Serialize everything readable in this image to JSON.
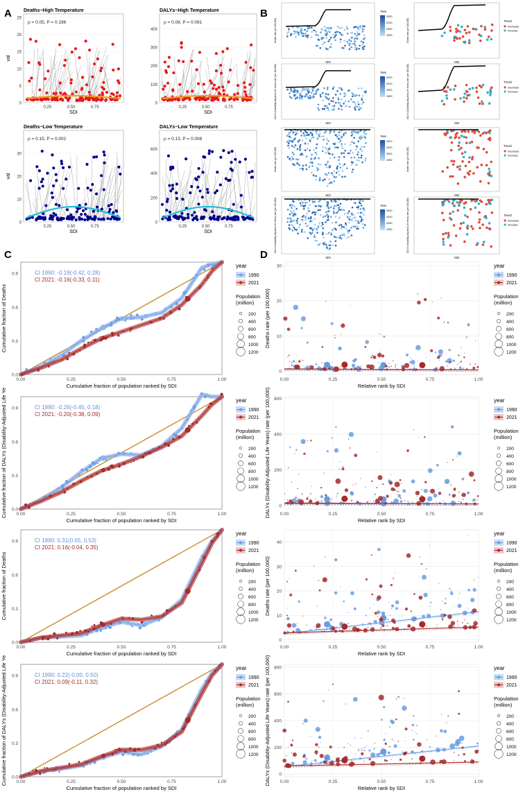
{
  "panel_letters": [
    "A",
    "B",
    "C",
    "D"
  ],
  "colors": {
    "red": "#e41a1c",
    "dark_red": "#a52a2a",
    "navy": "#00008b",
    "cyan": "#1fbfd6",
    "grey": "#8c8c8c",
    "light_blue": "#8fb4ee",
    "mid_blue": "#6a9de0",
    "orange_line": "#c98a2a",
    "trend_decrease": "#e04a3a",
    "trend_increase": "#2bb3c6"
  },
  "panelA": [
    {
      "title": "Deaths~High Temperature",
      "stat": "ρ = 0.05, P = 0.196",
      "ylabel": "val",
      "xlabel": "SDI",
      "yticks": [
        0,
        5,
        10,
        15,
        20,
        25
      ],
      "xticks": [
        "0.25",
        "0.50",
        "0.75"
      ],
      "ymax": 26,
      "theme": "red"
    },
    {
      "title": "DALYs~High Temperature",
      "stat": "ρ = 0.08, P = 0.091",
      "ylabel": "",
      "xlabel": "SDI",
      "yticks": [
        0,
        100,
        200,
        300,
        400
      ],
      "xticks": [
        "0.25",
        "0.50",
        "0.75"
      ],
      "ymax": 480,
      "theme": "red"
    },
    {
      "title": "Deaths~Low Temperature",
      "stat": "ρ = 0.15, P = 0.002",
      "ylabel": "val",
      "xlabel": "SDI",
      "yticks": [
        0,
        10,
        20,
        30
      ],
      "xticks": [
        "0.25",
        "0.50",
        "0.75"
      ],
      "ymax": 40,
      "theme": "blue"
    },
    {
      "title": "DALYs~Low Temperature",
      "stat": "ρ = 0.13, P = 0.008",
      "ylabel": "",
      "xlabel": "SDI",
      "yticks": [
        0,
        200,
        400,
        600
      ],
      "xticks": [
        "0.25",
        "0.50",
        "0.75"
      ],
      "ymax": 750,
      "theme": "blue"
    }
  ],
  "panelB": {
    "year_title": "Year",
    "year_ticks": [
      "2020",
      "2010",
      "2000",
      "1990"
    ],
    "trend_title": "Trend",
    "trend_items": [
      "Decrease",
      "Increase"
    ],
    "xlabel": "SDI",
    "ylabels": [
      "Deaths rate (per 100,000)",
      "DALYs (Disability-Adjusted Life Years) rate (per 100,000)",
      "Deaths rate (per 100,000)",
      "DALYs (Disability-Adjusted Life Years) rate (per 100,000)"
    ]
  },
  "chart_data": [
    {
      "panel": "C1",
      "type": "line",
      "title": "",
      "xlabel": "Cumulative fraction of population ranked by SDI",
      "ylabel": "Cumulative fraction of Deaths",
      "xlim": [
        0,
        1
      ],
      "ylim": [
        0,
        1
      ],
      "xticks": [
        0.0,
        0.25,
        0.5,
        0.75,
        1.0
      ],
      "yticks": [
        0.0,
        0.3,
        0.6,
        0.9
      ],
      "annotations": [
        "CI 1990: -0.19(-0.42, 0.28)",
        "CI 2021: -0.16(-0.33, 0.11)"
      ],
      "series": [
        {
          "name": "1990",
          "x": [
            0,
            0.1,
            0.2,
            0.3,
            0.4,
            0.5,
            0.6,
            0.7,
            0.8,
            0.9,
            0.95,
            1.0
          ],
          "y": [
            0,
            0.07,
            0.17,
            0.3,
            0.41,
            0.5,
            0.51,
            0.55,
            0.68,
            0.95,
            0.98,
            1.0
          ]
        },
        {
          "name": "2021",
          "x": [
            0,
            0.1,
            0.2,
            0.3,
            0.4,
            0.5,
            0.6,
            0.7,
            0.8,
            0.9,
            0.95,
            1.0
          ],
          "y": [
            0,
            0.06,
            0.13,
            0.23,
            0.32,
            0.38,
            0.44,
            0.5,
            0.62,
            0.8,
            0.92,
            1.0
          ]
        }
      ],
      "legend": {
        "title": "year",
        "entries": [
          "1990",
          "2021"
        ],
        "size_title": "Population\n(million)",
        "sizes": [
          200,
          400,
          600,
          800,
          1000,
          1200
        ]
      }
    },
    {
      "panel": "D1",
      "type": "scatter",
      "xlabel": "Relative rank by SDI",
      "ylabel": "Deaths rate (per 100,000)",
      "xlim": [
        0,
        1
      ],
      "ylim": [
        -1,
        31
      ],
      "xticks": [
        0.0,
        0.25,
        0.5,
        0.75,
        1.0
      ],
      "yticks": [
        0,
        10,
        20,
        30
      ],
      "series": [
        {
          "name": "1990",
          "fit": [
            0.5,
            0.3
          ]
        },
        {
          "name": "2021",
          "fit": [
            0.6,
            0.3
          ]
        }
      ],
      "legend": {
        "title": "year",
        "entries": [
          "1990",
          "2021"
        ],
        "size_title": "Population\n(million)",
        "sizes": [
          200,
          400,
          600,
          800,
          1000,
          1200
        ]
      }
    },
    {
      "panel": "C2",
      "type": "line",
      "xlabel": "Cumulative fraction of population ranked by SDI",
      "ylabel": "Cumulative fraction of DALYs (Disability-Adjusted Life Ye",
      "xlim": [
        0,
        1
      ],
      "ylim": [
        0,
        1
      ],
      "xticks": [
        0.0,
        0.25,
        0.5,
        0.75,
        1.0
      ],
      "yticks": [
        0.0,
        0.3,
        0.6,
        0.9
      ],
      "annotations": [
        "CI 1990: -0.26(-0.45, 0.18)",
        "CI 2021: -0.20(-0.38, 0.09)"
      ],
      "series": [
        {
          "name": "1990",
          "x": [
            0,
            0.1,
            0.2,
            0.3,
            0.4,
            0.5,
            0.6,
            0.7,
            0.8,
            0.9,
            0.95,
            1.0
          ],
          "y": [
            0,
            0.08,
            0.19,
            0.33,
            0.45,
            0.49,
            0.48,
            0.56,
            0.72,
            1.02,
            1.0,
            1.0
          ]
        },
        {
          "name": "2021",
          "x": [
            0,
            0.1,
            0.2,
            0.3,
            0.4,
            0.5,
            0.6,
            0.7,
            0.8,
            0.9,
            0.95,
            1.0
          ],
          "y": [
            0,
            0.07,
            0.15,
            0.25,
            0.34,
            0.4,
            0.47,
            0.55,
            0.65,
            0.83,
            0.93,
            1.0
          ]
        }
      ],
      "legend": {
        "title": "year",
        "entries": [
          "1990",
          "2021"
        ],
        "size_title": "Population\n(million)",
        "sizes": [
          200,
          400,
          600,
          800,
          1000,
          1200
        ]
      }
    },
    {
      "panel": "D2",
      "type": "scatter",
      "xlabel": "Relative rank by SDI",
      "ylabel": "DALYs (Disability-Adjusted Life Years) rate (per 100,000)",
      "xlim": [
        0,
        1
      ],
      "ylim": [
        -20,
        610
      ],
      "xticks": [
        0.0,
        0.25,
        0.5,
        0.75,
        1.0
      ],
      "yticks": [
        0,
        200,
        400,
        600
      ],
      "series": [
        {
          "name": "1990",
          "fit": [
            10,
            8
          ]
        },
        {
          "name": "2021",
          "fit": [
            14,
            9
          ]
        }
      ],
      "legend": {
        "title": "year",
        "entries": [
          "1990",
          "2021"
        ],
        "size_title": "Population\n(million)",
        "sizes": [
          200,
          400,
          600,
          800,
          1000,
          1200
        ]
      }
    },
    {
      "panel": "C3",
      "type": "line",
      "xlabel": "Cumulative fraction of population ranked by SDI",
      "ylabel": "Cumulative fraction of Deaths",
      "xlim": [
        0,
        1
      ],
      "ylim": [
        0,
        1
      ],
      "xticks": [
        0.0,
        0.25,
        0.5,
        0.75,
        1.0
      ],
      "yticks": [
        0.0,
        0.3,
        0.6,
        0.9
      ],
      "annotations": [
        "CI 1990: 0.31(0.05, 0.53)",
        "CI 2021: 0.16(-0.04, 0.35)"
      ],
      "series": [
        {
          "name": "1990",
          "x": [
            0,
            0.1,
            0.2,
            0.3,
            0.4,
            0.5,
            0.6,
            0.7,
            0.8,
            0.9,
            0.95,
            1.0
          ],
          "y": [
            0,
            0.04,
            0.05,
            0.06,
            0.13,
            0.18,
            0.15,
            0.22,
            0.38,
            0.75,
            0.9,
            1.0
          ]
        },
        {
          "name": "2021",
          "x": [
            0,
            0.1,
            0.2,
            0.3,
            0.4,
            0.5,
            0.6,
            0.7,
            0.8,
            0.9,
            0.95,
            1.0
          ],
          "y": [
            0,
            0.04,
            0.06,
            0.08,
            0.15,
            0.21,
            0.2,
            0.23,
            0.35,
            0.7,
            0.88,
            1.0
          ]
        }
      ],
      "legend": {
        "title": "year",
        "entries": [
          "1990",
          "2021"
        ],
        "size_title": "Population\n(million)",
        "sizes": [
          200,
          400,
          600,
          800,
          1000,
          1200
        ]
      }
    },
    {
      "panel": "D3",
      "type": "scatter",
      "xlabel": "Relative rank by SDI",
      "ylabel": "Deaths rate (per 100,000)",
      "xlim": [
        0,
        1
      ],
      "ylim": [
        -1,
        45
      ],
      "xticks": [
        0.0,
        0.25,
        0.5,
        0.75,
        1.0
      ],
      "yticks": [
        0,
        10,
        20,
        30,
        40
      ],
      "series": [
        {
          "name": "1990",
          "fit": [
            2.5,
            11.5
          ]
        },
        {
          "name": "2021",
          "fit": [
            2.8,
            5.2
          ]
        }
      ],
      "legend": {
        "title": "year",
        "entries": [
          "1990",
          "2021"
        ],
        "size_title": "Population\n(million)",
        "sizes": [
          200,
          400,
          600,
          800,
          1000,
          1200
        ]
      }
    },
    {
      "panel": "C4",
      "type": "line",
      "xlabel": "Cumulative fraction of population ranked by SDI",
      "ylabel": "Cumulative fraction of DALYs (Disability-Adjusted Life Ye",
      "xlim": [
        0,
        1
      ],
      "ylim": [
        0,
        1
      ],
      "xticks": [
        0.0,
        0.25,
        0.5,
        0.75,
        1.0
      ],
      "yticks": [
        0.0,
        0.3,
        0.6,
        0.9
      ],
      "annotations": [
        "CI 1990: 0.22(-0.00, 0.50)",
        "CI 2021: 0.09(-0.11, 0.32)"
      ],
      "series": [
        {
          "name": "1990",
          "x": [
            0,
            0.1,
            0.2,
            0.3,
            0.4,
            0.5,
            0.6,
            0.7,
            0.8,
            0.9,
            0.95,
            1.0
          ],
          "y": [
            0,
            0.05,
            0.07,
            0.1,
            0.17,
            0.22,
            0.2,
            0.27,
            0.42,
            0.78,
            0.92,
            1.0
          ]
        },
        {
          "name": "2021",
          "x": [
            0,
            0.1,
            0.2,
            0.3,
            0.4,
            0.5,
            0.6,
            0.7,
            0.8,
            0.9,
            0.95,
            1.0
          ],
          "y": [
            0,
            0.05,
            0.08,
            0.11,
            0.18,
            0.24,
            0.24,
            0.28,
            0.4,
            0.74,
            0.9,
            1.0
          ]
        }
      ],
      "legend": {
        "title": "year",
        "entries": [
          "1990",
          "2021"
        ],
        "size_title": "Population\n(million)",
        "sizes": [
          200,
          400,
          600,
          800,
          1000,
          1200
        ]
      }
    },
    {
      "panel": "D4",
      "type": "scatter",
      "xlabel": "Relative rank by SDI",
      "ylabel": "DALYs (Disability-Adjusted Life Years) rate (per 100,000)",
      "xlim": [
        0,
        1
      ],
      "ylim": [
        -20,
        820
      ],
      "xticks": [
        0.0,
        0.25,
        0.5,
        0.75,
        1.0
      ],
      "yticks": [
        0,
        200,
        400,
        600,
        800
      ],
      "series": [
        {
          "name": "1990",
          "fit": [
            55,
            210
          ]
        },
        {
          "name": "2021",
          "fit": [
            60,
            90
          ]
        }
      ],
      "legend": {
        "title": "year",
        "entries": [
          "1990",
          "2021"
        ],
        "size_title": "Population\n(million)",
        "sizes": [
          200,
          400,
          600,
          800,
          1000,
          1200
        ]
      }
    }
  ]
}
